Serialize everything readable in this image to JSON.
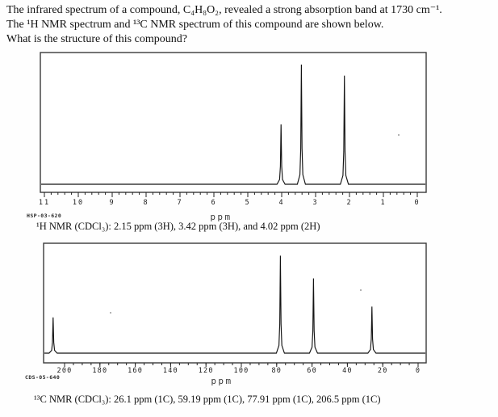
{
  "question": {
    "line1": "The infrared spectrum of a compound, C₄H₈O₂, revealed a strong absorption band at 1730 cm⁻¹.",
    "line2": "The ¹H NMR spectrum and ¹³C NMR spectrum of this compound are shown below.",
    "line3": "What is the structure of this compound?"
  },
  "chart_data": [
    {
      "id": "h1",
      "type": "line",
      "title": "¹H NMR spectrum",
      "caption": "¹H NMR (CDCl₃): 2.15 ppm (3H), 3.42 ppm (3H), and 4.02 ppm (2H)",
      "instrument_code": "HSP-03-620",
      "xlabel": "ppm",
      "x_axis": {
        "label": "ppm",
        "ticks": [
          11,
          10,
          9,
          8,
          7,
          6,
          5,
          4,
          3,
          2,
          1,
          0
        ],
        "minor_step": 0.2,
        "range_left": 11.1,
        "range_right": -0.3,
        "reversed": true,
        "unit": "ppm"
      },
      "y_axis": {
        "label": "intensity",
        "visible": false
      },
      "grid": false,
      "peaks": [
        {
          "ppm": 2.15,
          "rel_height": 0.835,
          "assignment": "3H"
        },
        {
          "ppm": 3.42,
          "rel_height": 0.92,
          "assignment": "3H"
        },
        {
          "ppm": 4.02,
          "rel_height": 0.46,
          "assignment": "2H"
        }
      ]
    },
    {
      "id": "c13",
      "type": "line",
      "title": "¹³C NMR spectrum",
      "caption": "¹³C NMR (CDCl₃): 26.1 ppm (1C), 59.19 ppm (1C), 77.91 ppm (1C), 206.5 ppm (1C)",
      "instrument_code": "CDS-05-640",
      "xlabel": "ppm",
      "x_axis": {
        "label": "ppm",
        "ticks": [
          200,
          180,
          160,
          140,
          120,
          100,
          80,
          60,
          40,
          20,
          0
        ],
        "minor_step": 5,
        "range_left": 212,
        "range_right": -4.5,
        "reversed": true,
        "unit": "ppm"
      },
      "y_axis": {
        "label": "intensity",
        "visible": false
      },
      "grid": false,
      "peaks": [
        {
          "ppm": 26.1,
          "rel_height": 0.43,
          "assignment": "1C"
        },
        {
          "ppm": 59.19,
          "rel_height": 0.69,
          "assignment": "1C"
        },
        {
          "ppm": 77.91,
          "rel_height": 0.9,
          "assignment": "1C"
        },
        {
          "ppm": 206.5,
          "rel_height": 0.33,
          "assignment": "1C"
        }
      ]
    }
  ]
}
